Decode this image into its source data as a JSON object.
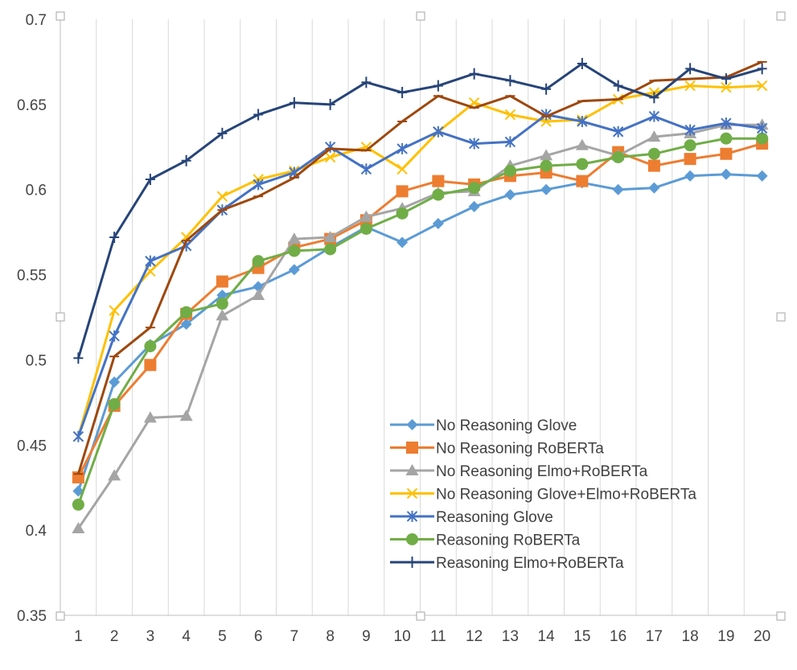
{
  "chart_data": {
    "type": "line",
    "title": "",
    "xlabel": "",
    "ylabel": "",
    "x": [
      1,
      2,
      3,
      4,
      5,
      6,
      7,
      8,
      9,
      10,
      11,
      12,
      13,
      14,
      15,
      16,
      17,
      18,
      19,
      20
    ],
    "x_tick_labels": [
      "1",
      "2",
      "3",
      "4",
      "5",
      "6",
      "7",
      "8",
      "9",
      "10",
      "11",
      "12",
      "13",
      "14",
      "15",
      "16",
      "17",
      "18",
      "19",
      "20"
    ],
    "ylim": [
      0.35,
      0.7
    ],
    "y_ticks": [
      0.35,
      0.4,
      0.45,
      0.5,
      0.55,
      0.6,
      0.65,
      0.7
    ],
    "y_tick_labels": [
      "0.35",
      "0.4",
      "0.45",
      "0.5",
      "0.55",
      "0.6",
      "0.65",
      "0.7"
    ],
    "grid": "vertical",
    "legend_position": "bottom-right-inside",
    "series": [
      {
        "name": "No Reasoning Glove",
        "color": "#5B9BD5",
        "marker": "diamond",
        "values": [
          0.423,
          0.487,
          0.509,
          0.521,
          0.538,
          0.543,
          0.553,
          0.566,
          0.578,
          0.569,
          0.58,
          0.59,
          0.597,
          0.6,
          0.604,
          0.6,
          0.601,
          0.608,
          0.609,
          0.608
        ]
      },
      {
        "name": "No Reasoning RoBERTa",
        "color": "#ED7D31",
        "marker": "square",
        "values": [
          0.431,
          0.473,
          0.497,
          0.527,
          0.546,
          0.554,
          0.566,
          0.571,
          0.582,
          0.599,
          0.605,
          0.603,
          0.608,
          0.61,
          0.605,
          0.622,
          0.614,
          0.618,
          0.621,
          0.627
        ]
      },
      {
        "name": "No Reasoning Elmo+RoBERTa",
        "color": "#A5A5A5",
        "marker": "triangle",
        "values": [
          0.401,
          0.432,
          0.466,
          0.467,
          0.526,
          0.538,
          0.571,
          0.572,
          0.584,
          0.589,
          0.598,
          0.599,
          0.614,
          0.62,
          0.626,
          0.62,
          0.631,
          0.633,
          0.638,
          0.638
        ]
      },
      {
        "name": "No Reasoning Glove+Elmo+RoBERTa",
        "color": "#FFC000",
        "marker": "x",
        "values": [
          0.455,
          0.529,
          0.552,
          0.572,
          0.596,
          0.606,
          0.611,
          0.619,
          0.625,
          0.612,
          0.634,
          0.651,
          0.644,
          0.64,
          0.641,
          0.653,
          0.657,
          0.661,
          0.66,
          0.661
        ]
      },
      {
        "name": "Reasoning Glove",
        "color": "#4472C4",
        "marker": "star",
        "values": [
          0.455,
          0.514,
          0.558,
          0.567,
          0.588,
          0.603,
          0.61,
          0.625,
          0.612,
          0.624,
          0.634,
          0.627,
          0.628,
          0.644,
          0.64,
          0.634,
          0.643,
          0.635,
          0.639,
          0.636
        ]
      },
      {
        "name": "Reasoning RoBERTa",
        "color": "#70AD47",
        "marker": "circle",
        "values": [
          0.415,
          0.474,
          0.508,
          0.528,
          0.533,
          0.558,
          0.564,
          0.565,
          0.577,
          0.586,
          0.597,
          0.601,
          0.611,
          0.614,
          0.615,
          0.619,
          0.621,
          0.626,
          0.63,
          0.63
        ]
      },
      {
        "name": "Reasoning Elmo+RoBERTa",
        "color": "#264478",
        "marker": "plus",
        "values": [
          0.501,
          0.572,
          0.606,
          0.617,
          0.633,
          0.644,
          0.651,
          0.65,
          0.663,
          0.657,
          0.661,
          0.668,
          0.664,
          0.659,
          0.674,
          0.661,
          0.654,
          0.671,
          0.665,
          0.671
        ]
      },
      {
        "name": "",
        "color": "#9E480E",
        "marker": "dash",
        "values": [
          0.433,
          0.502,
          0.519,
          0.57,
          0.588,
          0.596,
          0.607,
          0.624,
          0.623,
          0.64,
          0.655,
          0.648,
          0.655,
          0.643,
          0.652,
          0.653,
          0.664,
          0.665,
          0.666,
          0.675
        ]
      }
    ]
  }
}
